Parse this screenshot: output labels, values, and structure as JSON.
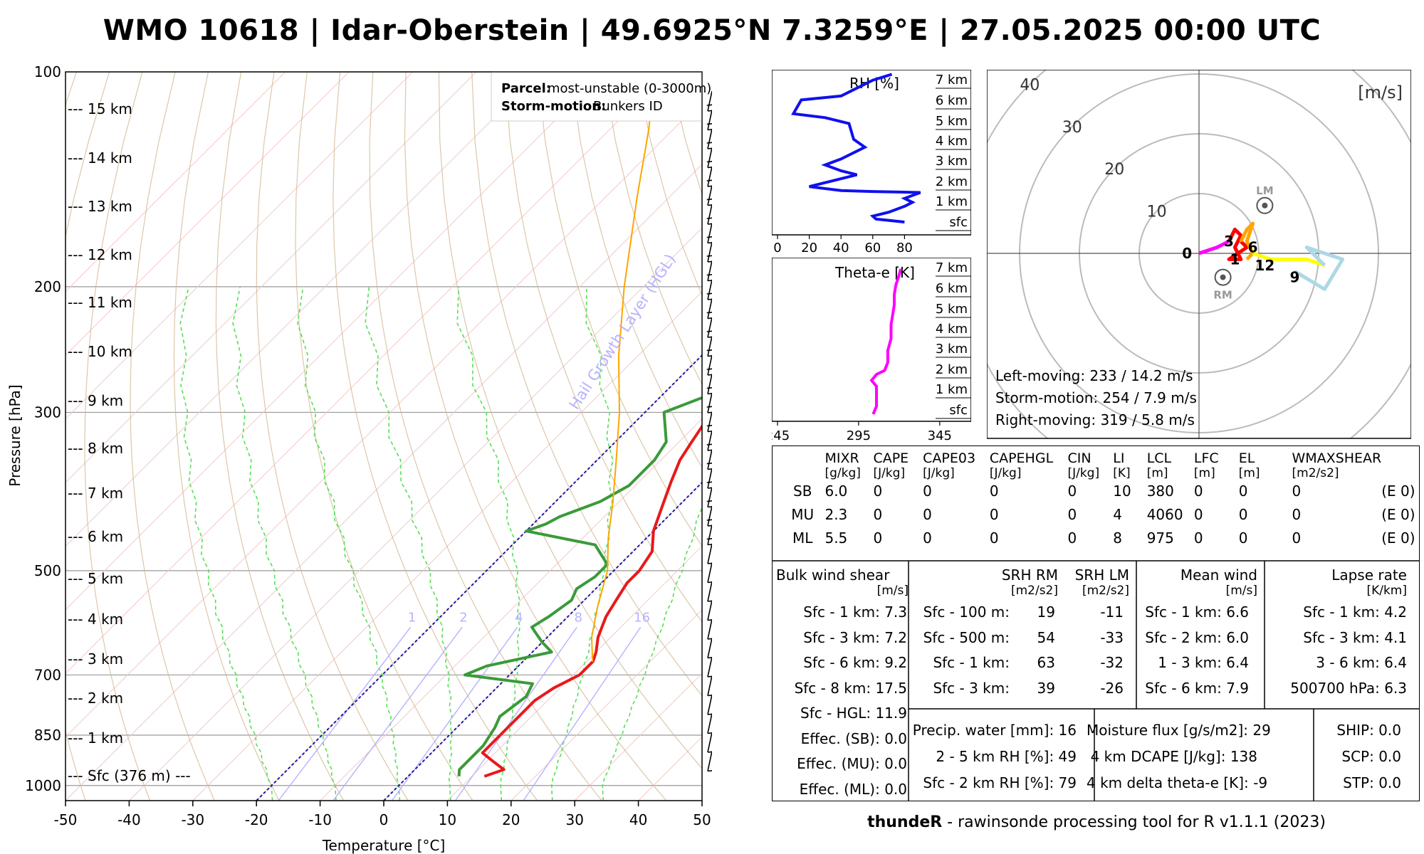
{
  "title": "WMO 10618 | Idar-Oberstein | 49.6925°N 7.3259°E | 27.05.2025 00:00 UTC",
  "skewt": {
    "xlabel": "Temperature [°C]",
    "ylabel": "Pressure [hPa]",
    "x_ticks": [
      "-50",
      "-40",
      "-30",
      "-20",
      "-10",
      "0",
      "10",
      "20",
      "30",
      "40",
      "50"
    ],
    "p_ticks": [
      "100",
      "200",
      "300",
      "500",
      "700",
      "850",
      "1000"
    ],
    "height_labels": [
      "--- 15 km",
      "--- 14 km",
      "--- 13 km",
      "--- 12 km",
      "--- 11 km",
      "--- 10 km",
      "--- 9 km",
      "--- 8 km",
      "--- 7 km",
      "--- 6 km",
      "--- 5 km",
      "--- 4 km",
      "--- 3 km",
      "--- 2 km",
      "--- 1 km",
      "--- Sfc (376 m) ---"
    ],
    "mixing_ratio_labels": [
      "1",
      "2",
      "4",
      "8",
      "16"
    ],
    "hgl_label": "Hail Growth Layer (HGL)",
    "parcel_label": "Parcel:",
    "parcel_value": "most-unstable (0-3000m)",
    "storm_motion_label": "Storm-motion:",
    "storm_motion_value": "Bunkers ID",
    "colors": {
      "temperature": "#e8191a",
      "dewpoint": "#3a9a3a",
      "parcel": "#ffa500",
      "hgl": "#1a1aa8",
      "mixing": "#b7b2ff",
      "moist": "#55e055",
      "dry": "#d2b48c"
    }
  },
  "chart_data": [
    {
      "type": "line",
      "name": "skew-t",
      "xlim": [
        -50,
        50
      ],
      "ylim": [
        1000,
        100
      ],
      "series": [
        {
          "name": "temperature",
          "points": [
            [
              971,
              12
            ],
            [
              950,
              14
            ],
            [
              925,
              11
            ],
            [
              900,
              8
            ],
            [
              850,
              8
            ],
            [
              800,
              8
            ],
            [
              760,
              8
            ],
            [
              730,
              9
            ],
            [
              700,
              11
            ],
            [
              670,
              11
            ],
            [
              650,
              10
            ],
            [
              620,
              8
            ],
            [
              580,
              6
            ],
            [
              550,
              5
            ],
            [
              520,
              4
            ],
            [
              500,
              4
            ],
            [
              470,
              3
            ],
            [
              440,
              0
            ],
            [
              400,
              -3
            ],
            [
              375,
              -5
            ],
            [
              350,
              -7
            ],
            [
              330,
              -8
            ],
            [
              310,
              -9
            ],
            [
              285,
              -11
            ],
            [
              262,
              -14
            ],
            [
              248,
              -14
            ],
            [
              237,
              -13
            ],
            [
              225,
              -10
            ],
            [
              210,
              -6
            ],
            [
              200,
              -5
            ],
            [
              185,
              -3
            ],
            [
              175,
              -2
            ],
            [
              165,
              -1
            ],
            [
              160,
              0
            ],
            [
              150,
              1
            ],
            [
              140,
              2
            ],
            [
              135,
              2
            ],
            [
              120,
              5
            ],
            [
              112,
              8
            ],
            [
              100,
              8
            ]
          ]
        },
        {
          "name": "dewpoint",
          "points": [
            [
              971,
              8
            ],
            [
              950,
              7
            ],
            [
              925,
              7
            ],
            [
              880,
              7
            ],
            [
              830,
              6
            ],
            [
              800,
              5
            ],
            [
              750,
              6
            ],
            [
              720,
              5
            ],
            [
              700,
              -7
            ],
            [
              680,
              -5
            ],
            [
              650,
              3
            ],
            [
              630,
              0
            ],
            [
              600,
              -4
            ],
            [
              580,
              -3
            ],
            [
              550,
              -2
            ],
            [
              530,
              -3
            ],
            [
              510,
              -2
            ],
            [
              490,
              -2
            ],
            [
              460,
              -7
            ],
            [
              440,
              -20
            ],
            [
              430,
              -18
            ],
            [
              420,
              -17
            ],
            [
              400,
              -13
            ],
            [
              380,
              -11
            ],
            [
              350,
              -11
            ],
            [
              330,
              -12
            ],
            [
              300,
              -17
            ],
            [
              285,
              -13
            ],
            [
              260,
              -13
            ],
            [
              245,
              -12
            ],
            [
              225,
              -17
            ],
            [
              212,
              -20
            ],
            [
              200,
              -18
            ],
            [
              180,
              -16
            ],
            [
              160,
              -15
            ],
            [
              145,
              -13
            ],
            [
              130,
              -12
            ],
            [
              115,
              -11
            ],
            [
              105,
              -11
            ],
            [
              100,
              -9
            ]
          ]
        },
        {
          "name": "parcel",
          "points": [
            [
              671,
              11
            ],
            [
              620,
              7
            ],
            [
              560,
              3
            ],
            [
              500,
              -1
            ],
            [
              450,
              -6
            ],
            [
              400,
              -11
            ],
            [
              350,
              -17
            ],
            [
              300,
              -24
            ],
            [
              250,
              -33
            ],
            [
              200,
              -43
            ],
            [
              150,
              -55
            ],
            [
              120,
              -64
            ],
            [
              100,
              -72
            ]
          ]
        }
      ]
    },
    {
      "type": "line",
      "name": "RH profile",
      "xlabel": "RH [%]",
      "x_ticks": [
        "0",
        "20",
        "40",
        "60",
        "80"
      ],
      "xlim": [
        0,
        100
      ],
      "y_labels": [
        "7 km",
        "6 km",
        "5 km",
        "4 km",
        "3 km",
        "2 km",
        "1 km",
        "sfc"
      ],
      "series": [
        {
          "name": "RH",
          "points": [
            [
              80,
              0
            ],
            [
              62,
              0.15
            ],
            [
              60,
              0.3
            ],
            [
              70,
              0.5
            ],
            [
              80,
              0.8
            ],
            [
              85,
              1.0
            ],
            [
              80,
              1.2
            ],
            [
              90,
              1.5
            ],
            [
              60,
              1.55
            ],
            [
              40,
              1.6
            ],
            [
              20,
              1.8
            ],
            [
              50,
              2.4
            ],
            [
              40,
              2.6
            ],
            [
              30,
              2.9
            ],
            [
              40,
              3.2
            ],
            [
              55,
              3.8
            ],
            [
              48,
              4.2
            ],
            [
              45,
              5.0
            ],
            [
              30,
              5.3
            ],
            [
              10,
              5.5
            ],
            [
              15,
              6.2
            ],
            [
              40,
              6.4
            ],
            [
              50,
              6.8
            ],
            [
              60,
              7.2
            ],
            [
              72,
              7.5
            ]
          ]
        }
      ]
    },
    {
      "type": "line",
      "name": "theta-e profile",
      "xlabel": "Theta-e [K]",
      "x_ticks": [
        "245",
        "295",
        "345"
      ],
      "xlim": [
        245,
        360
      ],
      "y_labels": [
        "7 km",
        "6 km",
        "5 km",
        "4 km",
        "3 km",
        "2 km",
        "1 km",
        "sfc"
      ],
      "series": [
        {
          "name": "theta-e",
          "points": [
            [
              304,
              0
            ],
            [
              306,
              0.4
            ],
            [
              306,
              1.0
            ],
            [
              306,
              1.4
            ],
            [
              303,
              1.7
            ],
            [
              306,
              2.0
            ],
            [
              311,
              2.2
            ],
            [
              313,
              2.6
            ],
            [
              313,
              3.2
            ],
            [
              315,
              3.8
            ],
            [
              315,
              4.5
            ],
            [
              316,
              5.0
            ],
            [
              317,
              5.5
            ],
            [
              317,
              6.0
            ],
            [
              318,
              6.5
            ],
            [
              320,
              7.0
            ],
            [
              321,
              7.3
            ]
          ]
        }
      ]
    },
    {
      "type": "line",
      "name": "hodograph",
      "unit_label": "[m/s]",
      "rings": [
        10,
        20,
        30,
        40
      ],
      "ring_labels": [
        "10",
        "20",
        "30",
        "40"
      ],
      "point_labels": [
        "0",
        "1",
        "3",
        "6",
        "9",
        "12"
      ],
      "series": [
        {
          "name": "0-1 km",
          "color": "#ff00ff",
          "points": [
            [
              0,
              0
            ],
            [
              3,
              1
            ],
            [
              5,
              2
            ]
          ]
        },
        {
          "name": "1-3 km",
          "color": "#ff0000",
          "points": [
            [
              5,
              2
            ],
            [
              6,
              4
            ],
            [
              7,
              3
            ],
            [
              6,
              1
            ],
            [
              7,
              -1
            ],
            [
              5,
              -1
            ],
            [
              8,
              1
            ],
            [
              7,
              2
            ]
          ]
        },
        {
          "name": "3-6 km",
          "color": "#ffa500",
          "points": [
            [
              7,
              2
            ],
            [
              8,
              4
            ],
            [
              9,
              5
            ],
            [
              8,
              2
            ],
            [
              9,
              0
            ],
            [
              8,
              -1
            ]
          ]
        },
        {
          "name": "6-9 km",
          "color": "#ffff00",
          "points": [
            [
              9,
              0
            ],
            [
              12,
              -1
            ],
            [
              15,
              -1
            ],
            [
              18,
              -1
            ],
            [
              21,
              -2
            ]
          ]
        },
        {
          "name": "9-12 km",
          "color": "#add8e6",
          "points": [
            [
              21,
              -2
            ],
            [
              18,
              1
            ],
            [
              24,
              -1
            ],
            [
              21,
              -6
            ],
            [
              16,
              -3
            ]
          ]
        }
      ],
      "markers": [
        {
          "label": "LM",
          "u": 11,
          "v": 8
        },
        {
          "label": "RM",
          "u": 4,
          "v": -4
        }
      ],
      "texts": [
        "Left-moving: 233 / 14.2 m/s",
        "Storm-motion: 254 / 7.9 m/s",
        "Right-moving: 319 / 5.8 m/s"
      ]
    }
  ],
  "indices": {
    "headers": [
      {
        "name": "",
        "unit": ""
      },
      {
        "name": "MIXR",
        "unit": "[g/kg]"
      },
      {
        "name": "CAPE",
        "unit": "[J/kg]"
      },
      {
        "name": "CAPE03",
        "unit": "[J/kg]"
      },
      {
        "name": "CAPEHGL",
        "unit": "[J/kg]"
      },
      {
        "name": "CIN",
        "unit": "[J/kg]"
      },
      {
        "name": "LI",
        "unit": "[K]"
      },
      {
        "name": "LCL",
        "unit": "[m]"
      },
      {
        "name": "LFC",
        "unit": "[m]"
      },
      {
        "name": "EL",
        "unit": "[m]"
      },
      {
        "name": "WMAXSHEAR",
        "unit": "[m2/s2]"
      },
      {
        "name": "",
        "unit": ""
      }
    ],
    "rows": [
      [
        "SB",
        "6.0",
        "0",
        "0",
        "0",
        "0",
        "10",
        "380",
        "0",
        "0",
        "0",
        "(E 0)"
      ],
      [
        "MU",
        "2.3",
        "0",
        "0",
        "0",
        "0",
        "4",
        "4060",
        "0",
        "0",
        "0",
        "(E 0)"
      ],
      [
        "ML",
        "5.5",
        "0",
        "0",
        "0",
        "0",
        "8",
        "975",
        "0",
        "0",
        "0",
        "(E 0)"
      ]
    ]
  },
  "bulk_shear": {
    "title": "Bulk wind shear",
    "unit": "[m/s]",
    "rows": [
      "Sfc - 1 km: 7.3",
      "Sfc - 3 km: 7.2",
      "Sfc - 6 km: 9.2",
      "Sfc - 8 km: 17.5",
      "Sfc - HGL: 11.9",
      "Effec. (SB): 0.0",
      "Effec. (MU): 0.0",
      "Effec. (ML): 0.0"
    ]
  },
  "srh": {
    "rm_title": "SRH RM",
    "rm_unit": "[m2/s2]",
    "lm_title": "SRH LM",
    "lm_unit": "[m2/s2]",
    "rows": [
      {
        "label": "Sfc - 100 m:",
        "rm": "19",
        "lm": "-11"
      },
      {
        "label": "Sfc - 500 m:",
        "rm": "54",
        "lm": "-33"
      },
      {
        "label": "Sfc - 1 km:",
        "rm": "63",
        "lm": "-32"
      },
      {
        "label": "Sfc - 3 km:",
        "rm": "39",
        "lm": "-26"
      }
    ]
  },
  "mean_wind": {
    "title": "Mean wind",
    "unit": "[m/s]",
    "rows": [
      "Sfc - 1 km: 6.6",
      "Sfc - 2 km: 6.0",
      "1 - 3 km: 6.4",
      "Sfc - 6 km: 7.9"
    ]
  },
  "lapse_rate": {
    "title": "Lapse rate",
    "unit": "[K/km]",
    "rows": [
      "Sfc - 1 km: 4.2",
      "Sfc - 3 km: 4.1",
      "3 - 6 km: 6.4",
      "500700 hPa: 6.3"
    ]
  },
  "moisture": {
    "rows": [
      "Precip. water [mm]: 16",
      "2 - 5 km RH [%]: 49",
      "Sfc - 2 km RH [%]: 79"
    ]
  },
  "flux": {
    "rows": [
      "Moisture flux [g/s/m2]: 29",
      "4 km DCAPE [J/kg]: 138",
      "4 km delta theta-e [K]: -9"
    ]
  },
  "composite": {
    "rows": [
      "SHIP: 0.0",
      "SCP: 0.0",
      "STP: 0.0"
    ]
  },
  "footer": {
    "brand": "thundeR",
    "text": " - rawinsonde processing tool for R v1.1.1 (2023)"
  }
}
